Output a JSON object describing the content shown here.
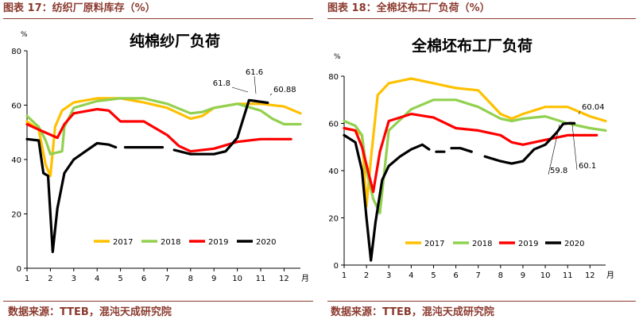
{
  "captions": {
    "left": "图表 17：纺织厂原料库存（%）",
    "right": "图表 18：全棉坯布工厂负荷（%）",
    "source_left": "数据来源：TTEB，混沌天成研究院",
    "source_right": "数据来源：TTEB，混沌天成研究院"
  },
  "colors": {
    "2017": "#FFC000",
    "2018": "#92D050",
    "2019": "#FF0000",
    "2020": "#000000",
    "caption": "#8B3A2E"
  },
  "chart_data": [
    {
      "type": "line",
      "title": "纯棉纱厂负荷",
      "ylabel": "%",
      "xlabel": "月",
      "ylim": [
        0,
        80
      ],
      "yticks": [
        "0",
        "20",
        "40",
        "60",
        "80"
      ],
      "xlim": [
        1,
        12.7
      ],
      "xticks": [
        "1",
        "2",
        "3",
        "4",
        "5",
        "6",
        "7",
        "8",
        "9",
        "10",
        "11",
        "12"
      ],
      "legend": "bottom",
      "legend_labels": [
        "2017",
        "2018",
        "2019",
        "2020"
      ],
      "annotations": [
        "61.8",
        "61.6",
        "60.88"
      ],
      "series": [
        {
          "name": "2017",
          "points": [
            [
              1,
              54
            ],
            [
              1.5,
              51
            ],
            [
              1.8,
              38
            ],
            [
              2.0,
              34
            ],
            [
              2.2,
              52
            ],
            [
              2.5,
              58
            ],
            [
              3,
              61
            ],
            [
              4,
              62.5
            ],
            [
              5,
              62.5
            ],
            [
              6,
              61
            ],
            [
              7,
              59
            ],
            [
              8,
              55
            ],
            [
              8.5,
              56
            ],
            [
              9,
              59
            ],
            [
              10,
              60.5
            ],
            [
              11,
              60.5
            ],
            [
              12,
              59.5
            ],
            [
              12.7,
              57
            ]
          ]
        },
        {
          "name": "2018",
          "points": [
            [
              1,
              56
            ],
            [
              1.5,
              52
            ],
            [
              1.8,
              47
            ],
            [
              2.0,
              42
            ],
            [
              2.5,
              43
            ],
            [
              2.6,
              52
            ],
            [
              3,
              59
            ],
            [
              4,
              61.5
            ],
            [
              5,
              62.5
            ],
            [
              6,
              62.5
            ],
            [
              7,
              60.5
            ],
            [
              8,
              57
            ],
            [
              8.5,
              57.5
            ],
            [
              9,
              59
            ],
            [
              10,
              60.5
            ],
            [
              11,
              58
            ],
            [
              11.5,
              55
            ],
            [
              12,
              53
            ],
            [
              12.7,
              53
            ]
          ]
        },
        {
          "name": "2019",
          "points": [
            [
              1,
              53
            ],
            [
              1.5,
              51
            ],
            [
              2.3,
              48
            ],
            [
              2.6,
              53
            ],
            [
              3,
              57
            ],
            [
              4,
              58.5
            ],
            [
              4.5,
              58
            ],
            [
              5,
              54
            ],
            [
              6,
              54
            ],
            [
              7,
              49
            ],
            [
              7.5,
              45
            ],
            [
              8,
              43
            ],
            [
              9,
              44
            ],
            [
              10,
              46.5
            ],
            [
              11,
              47.5
            ],
            [
              12,
              47.5
            ],
            [
              12.3,
              47.5
            ]
          ]
        },
        {
          "name": "2020",
          "segments": [
            [
              [
                1,
                47.5
              ],
              [
                1.5,
                47
              ],
              [
                1.7,
                35
              ],
              [
                1.9,
                34
              ],
              [
                2.0,
                20
              ],
              [
                2.1,
                6
              ],
              [
                2.3,
                22
              ],
              [
                2.6,
                35
              ],
              [
                3,
                40
              ],
              [
                3.5,
                43
              ],
              [
                4,
                46
              ],
              [
                4.5,
                45.5
              ],
              [
                4.8,
                44.5
              ]
            ],
            [
              [
                5.2,
                44.5
              ],
              [
                6.8,
                44.5
              ]
            ],
            [
              [
                7.3,
                43.5
              ],
              [
                8,
                42
              ],
              [
                9,
                42
              ],
              [
                9.5,
                43
              ],
              [
                10,
                48
              ],
              [
                10.5,
                61.8
              ],
              [
                10.7,
                61.6
              ],
              [
                11.3,
                60.88
              ]
            ]
          ]
        }
      ]
    },
    {
      "type": "line",
      "title": "全棉坯布工厂负荷",
      "ylabel": "%",
      "xlabel": "月",
      "ylim": [
        0,
        80
      ],
      "yticks": [
        "0",
        "20",
        "40",
        "60",
        "80"
      ],
      "xlim": [
        1,
        12.7
      ],
      "xticks": [
        "1",
        "2",
        "3",
        "4",
        "5",
        "6",
        "7",
        "8",
        "9",
        "10",
        "11",
        "12"
      ],
      "legend": "bottom",
      "legend_labels": [
        "2017",
        "2018",
        "2019",
        "2020"
      ],
      "annotations": [
        "60.04",
        "59.8",
        "60.1"
      ],
      "series": [
        {
          "name": "2017",
          "points": [
            [
              1,
              58
            ],
            [
              1.5,
              57
            ],
            [
              1.8,
              55
            ],
            [
              2.0,
              25
            ],
            [
              2.2,
              45
            ],
            [
              2.5,
              72
            ],
            [
              3,
              77
            ],
            [
              4,
              79
            ],
            [
              5,
              77
            ],
            [
              6,
              75
            ],
            [
              7,
              74
            ],
            [
              8,
              64
            ],
            [
              8.5,
              62
            ],
            [
              9,
              64
            ],
            [
              10,
              67
            ],
            [
              11,
              67
            ],
            [
              12,
              63
            ],
            [
              12.7,
              61
            ]
          ]
        },
        {
          "name": "2018",
          "points": [
            [
              1,
              61
            ],
            [
              1.5,
              59
            ],
            [
              1.8,
              55
            ],
            [
              2.0,
              40
            ],
            [
              2.3,
              28
            ],
            [
              2.6,
              22
            ],
            [
              3,
              57
            ],
            [
              4,
              66
            ],
            [
              5,
              70
            ],
            [
              6,
              70
            ],
            [
              7,
              67
            ],
            [
              8,
              62
            ],
            [
              8.5,
              61
            ],
            [
              9,
              62
            ],
            [
              10,
              63
            ],
            [
              11,
              60
            ],
            [
              12,
              58
            ],
            [
              12.7,
              57
            ]
          ]
        },
        {
          "name": "2019",
          "points": [
            [
              1,
              58
            ],
            [
              1.5,
              57
            ],
            [
              1.8,
              50
            ],
            [
              2.3,
              31
            ],
            [
              2.6,
              48
            ],
            [
              3,
              61
            ],
            [
              4,
              64
            ],
            [
              5,
              62.5
            ],
            [
              6,
              58
            ],
            [
              7,
              57
            ],
            [
              8,
              55
            ],
            [
              8.5,
              52
            ],
            [
              9,
              51
            ],
            [
              10,
              53
            ],
            [
              11,
              55
            ],
            [
              12,
              55
            ],
            [
              12.3,
              55
            ]
          ]
        },
        {
          "name": "2020",
          "segments": [
            [
              [
                1,
                55
              ],
              [
                1.5,
                52
              ],
              [
                1.8,
                40
              ],
              [
                2.0,
                20
              ],
              [
                2.2,
                2
              ],
              [
                2.4,
                18
              ],
              [
                2.7,
                36
              ],
              [
                3,
                42
              ],
              [
                3.5,
                46
              ],
              [
                4,
                49
              ],
              [
                4.5,
                51
              ],
              [
                4.8,
                49
              ]
            ],
            [
              [
                5.3,
                48
              ]
            ],
            [
              [
                5.8,
                49.5
              ],
              [
                6.2,
                49.5
              ],
              [
                6.7,
                48
              ]
            ],
            [
              [
                7.3,
                46
              ],
              [
                8,
                44
              ],
              [
                8.5,
                43
              ],
              [
                9,
                44
              ],
              [
                9.5,
                49
              ],
              [
                10,
                51
              ],
              [
                10.5,
                56
              ],
              [
                10.8,
                59.8
              ],
              [
                11.1,
                60.1
              ],
              [
                11.3,
                60.04
              ]
            ]
          ]
        }
      ]
    }
  ]
}
